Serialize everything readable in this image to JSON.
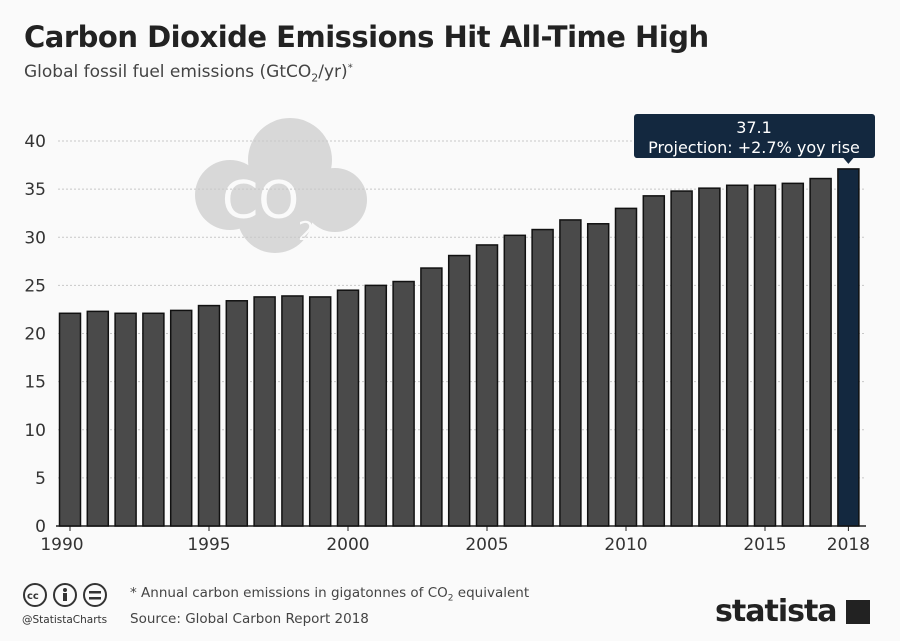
{
  "header": {
    "title": "Carbon Dioxide Emissions Hit All-Time High",
    "subtitle_pre": "Global fossil fuel emissions (GtCO",
    "subtitle_sub": "2",
    "subtitle_post": "/yr)",
    "subtitle_sup": "*"
  },
  "chart_data": {
    "type": "bar",
    "title": "Carbon Dioxide Emissions Hit All-Time High",
    "ylabel": "Global fossil fuel emissions (GtCO2/yr)*",
    "ylim": [
      0,
      40
    ],
    "yticks": [
      0,
      5,
      10,
      15,
      20,
      25,
      30,
      35,
      40
    ],
    "xtick_labels": [
      "1990",
      "1995",
      "2000",
      "2005",
      "2010",
      "2015",
      "2018"
    ],
    "grid": true,
    "categories": [
      1990,
      1991,
      1992,
      1993,
      1994,
      1995,
      1996,
      1997,
      1998,
      1999,
      2000,
      2001,
      2002,
      2003,
      2004,
      2005,
      2006,
      2007,
      2008,
      2009,
      2010,
      2011,
      2012,
      2013,
      2014,
      2015,
      2016,
      2017,
      2018
    ],
    "values": [
      22.1,
      22.3,
      22.1,
      22.1,
      22.4,
      22.9,
      23.4,
      23.8,
      23.9,
      23.8,
      24.5,
      25.0,
      25.4,
      26.8,
      28.1,
      29.2,
      30.2,
      30.8,
      31.8,
      31.4,
      33.0,
      34.3,
      34.8,
      35.1,
      35.4,
      35.4,
      35.6,
      36.1,
      37.1
    ],
    "bar_color": "#4a4a4a",
    "highlight_color": "#13283f",
    "annotation": {
      "value": "37.1",
      "text": "Projection: +2.7% yoy rise"
    }
  },
  "footer": {
    "note_pre": "* Annual carbon emissions in gigatonnes of CO",
    "note_sub": "2",
    "note_post": " equivalent",
    "source": "Source: Global Carbon Report 2018",
    "handle": "@StatistaCharts",
    "brand": "statista",
    "icons": [
      "cc-icon",
      "attribution-icon",
      "no-derivatives-icon"
    ]
  }
}
